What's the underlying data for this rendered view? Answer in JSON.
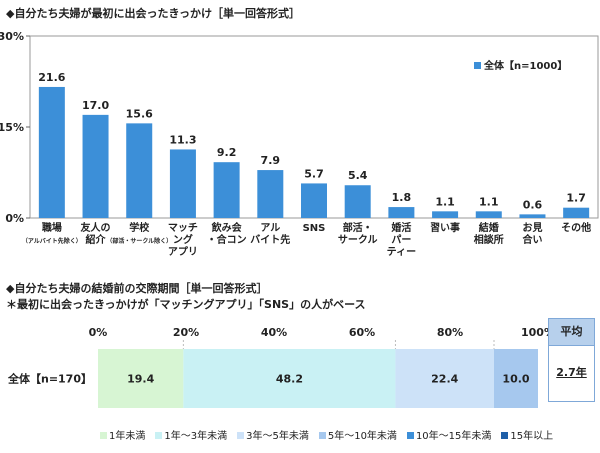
{
  "chart_data": [
    {
      "type": "bar",
      "title": "◆自分たち夫婦が最初に出会ったきっかけ［単一回答形式］",
      "categories": [
        [
          "職場",
          "（アルバイト先除く）"
        ],
        [
          "友人の",
          "紹介"
        ],
        [
          "学校",
          "（部活・サークル除く）"
        ],
        [
          "マッチ",
          "ング",
          "アプリ"
        ],
        [
          "飲み会",
          "・合コン"
        ],
        [
          "アル",
          "バイト先"
        ],
        [
          "SNS"
        ],
        [
          "部活・",
          "サークル"
        ],
        [
          "婚活",
          "パー",
          "ティー"
        ],
        [
          "習い事"
        ],
        [
          "結婚",
          "相談所"
        ],
        [
          "お見",
          "合い"
        ],
        [
          "その他"
        ]
      ],
      "series": [
        {
          "name": "全体【n=1000】",
          "values": [
            21.6,
            17.0,
            15.6,
            11.3,
            9.2,
            7.9,
            5.7,
            5.4,
            1.8,
            1.1,
            1.1,
            0.6,
            1.7
          ]
        }
      ],
      "value_labels": [
        "21.6",
        "17.0",
        "15.6",
        "11.3",
        "9.2",
        "7.9",
        "5.7",
        "5.4",
        "1.8",
        "1.1",
        "1.1",
        "0.6",
        "1.7"
      ],
      "ylim": [
        0,
        30
      ],
      "yticks": [
        "0%",
        "15%",
        "30%"
      ],
      "grid": false,
      "legend": "top-right",
      "color": "#3c8fd8"
    },
    {
      "type": "bar",
      "orientation": "horizontal-stacked",
      "title": "◆自分たち夫婦の結婚前の交際期間［単一回答形式］",
      "subtitle": "＊最初に出会ったきっかけが「マッチングアプリ」「SNS」の人がベース",
      "categories": [
        "全体【n=170】"
      ],
      "series": [
        {
          "name": "1年未満",
          "values": [
            19.4
          ],
          "label": "19.4",
          "color": "#d7f5d3"
        },
        {
          "name": "1年～3年未満",
          "values": [
            48.2
          ],
          "label": "48.2",
          "color": "#c9f1f4"
        },
        {
          "name": "3年～5年未満",
          "values": [
            22.4
          ],
          "label": "22.4",
          "color": "#cde2f8"
        },
        {
          "name": "5年～10年未満",
          "values": [
            10.0
          ],
          "label": "10.0",
          "color": "#a6c8ee"
        },
        {
          "name": "10年～15年未満",
          "values": [
            0
          ],
          "label": "",
          "color": "#3c8fd8"
        },
        {
          "name": "15年以上",
          "values": [
            0
          ],
          "label": "",
          "color": "#1f5fa8"
        }
      ],
      "xlim": [
        0,
        100
      ],
      "xticks": [
        "0%",
        "20%",
        "40%",
        "60%",
        "80%",
        "100%"
      ],
      "legend": "bottom",
      "average": {
        "header": "平均",
        "value": "2.7年"
      }
    }
  ]
}
